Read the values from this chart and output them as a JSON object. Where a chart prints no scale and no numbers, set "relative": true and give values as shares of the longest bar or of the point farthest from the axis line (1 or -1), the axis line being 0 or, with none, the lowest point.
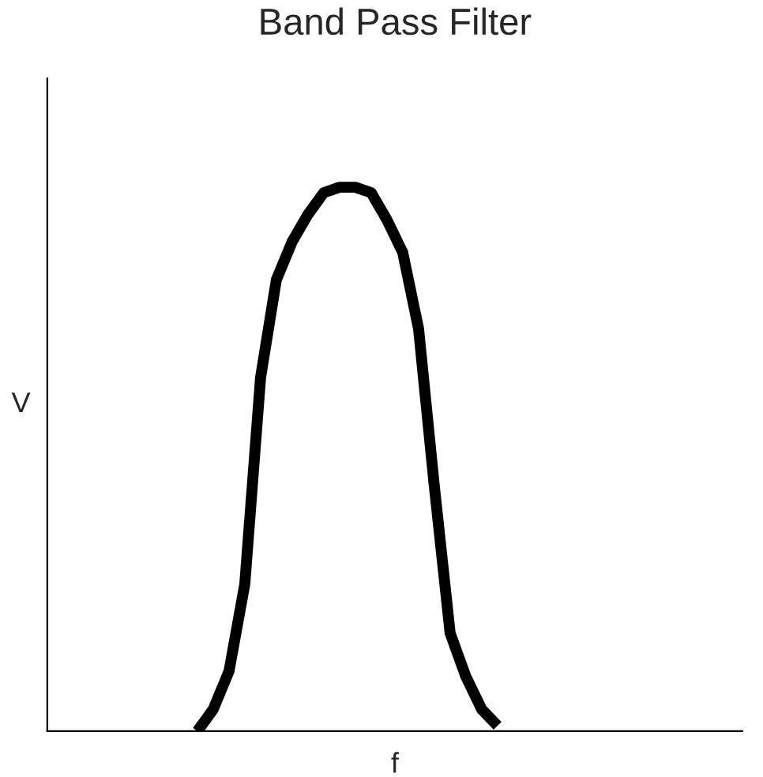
{
  "chart_data": {
    "type": "line",
    "title": "Band Pass Filter",
    "xlabel": "f",
    "ylabel": "V",
    "relative": true,
    "marker": "none",
    "line_style": "solid",
    "grid": false,
    "legend": false,
    "categories": [
      null,
      null,
      null,
      null,
      null,
      null,
      null,
      null,
      null,
      null,
      null,
      null,
      null,
      null,
      null,
      null,
      null,
      null,
      null,
      null,
      null,
      null,
      null,
      null,
      null,
      null,
      null,
      null,
      null,
      null,
      null,
      null,
      null,
      null,
      null,
      null,
      null,
      null,
      null,
      null,
      null,
      null,
      null,
      null
    ],
    "series": [
      {
        "color": "#000000",
        "values": [
          null,
          null,
          null,
          null,
          null,
          null,
          null,
          null,
          null,
          0,
          0.04,
          0.11,
          0.27,
          0.65,
          0.83,
          0.9,
          0.95,
          0.99,
          1,
          1,
          0.99,
          0.94,
          0.88,
          0.74,
          0.45,
          0.18,
          0.1,
          0.04,
          0.01,
          null,
          null,
          null,
          null,
          null,
          null,
          null,
          null,
          null,
          null,
          null,
          null,
          null,
          null,
          null
        ]
      }
    ]
  }
}
